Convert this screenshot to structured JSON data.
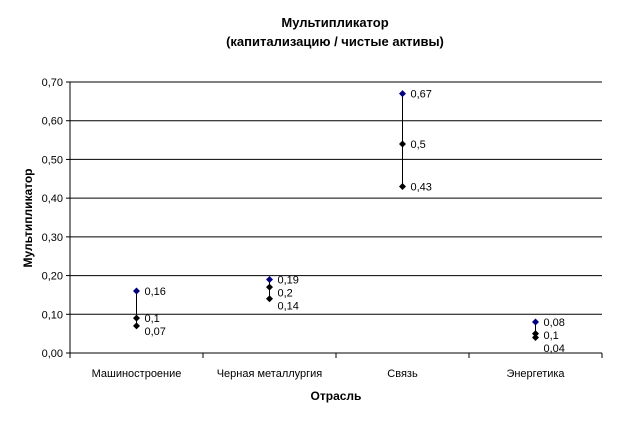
{
  "chart_data": {
    "type": "scatter",
    "title": "Мультипликатор",
    "subtitle": "(капитализацию / чистые активы)",
    "xlabel": "Отрасль",
    "ylabel": "Мультипликатор",
    "ylim": [
      0,
      0.7
    ],
    "y_tick_labels": [
      "0,00",
      "0,10",
      "0,20",
      "0,30",
      "0,40",
      "0,50",
      "0,60",
      "0,70"
    ],
    "grid": true,
    "categories": [
      "Машиностроение",
      "Черная металлургия",
      "Связь",
      "Энергетика"
    ],
    "groups": [
      {
        "category": "Машиностроение",
        "points": [
          {
            "y": 0.16,
            "label": "0,16",
            "color": "#000080"
          },
          {
            "y": 0.09,
            "label": "0,1",
            "color": "#000000"
          },
          {
            "y": 0.07,
            "label": "0,07",
            "color": "#000000"
          }
        ]
      },
      {
        "category": "Черная металлургия",
        "points": [
          {
            "y": 0.19,
            "label": "0,19",
            "color": "#000080"
          },
          {
            "y": 0.17,
            "label": "0,2",
            "color": "#000000"
          },
          {
            "y": 0.14,
            "label": "0,14",
            "color": "#000000"
          }
        ]
      },
      {
        "category": "Связь",
        "points": [
          {
            "y": 0.67,
            "label": "0,67",
            "color": "#000080"
          },
          {
            "y": 0.54,
            "label": "0,5",
            "color": "#000000"
          },
          {
            "y": 0.43,
            "label": "0,43",
            "color": "#000000"
          }
        ]
      },
      {
        "category": "Энергетика",
        "points": [
          {
            "y": 0.08,
            "label": "0,08",
            "color": "#000080"
          },
          {
            "y": 0.05,
            "label": "0,1",
            "color": "#000000"
          },
          {
            "y": 0.04,
            "label": "0,04",
            "color": "#000000"
          }
        ]
      }
    ]
  }
}
